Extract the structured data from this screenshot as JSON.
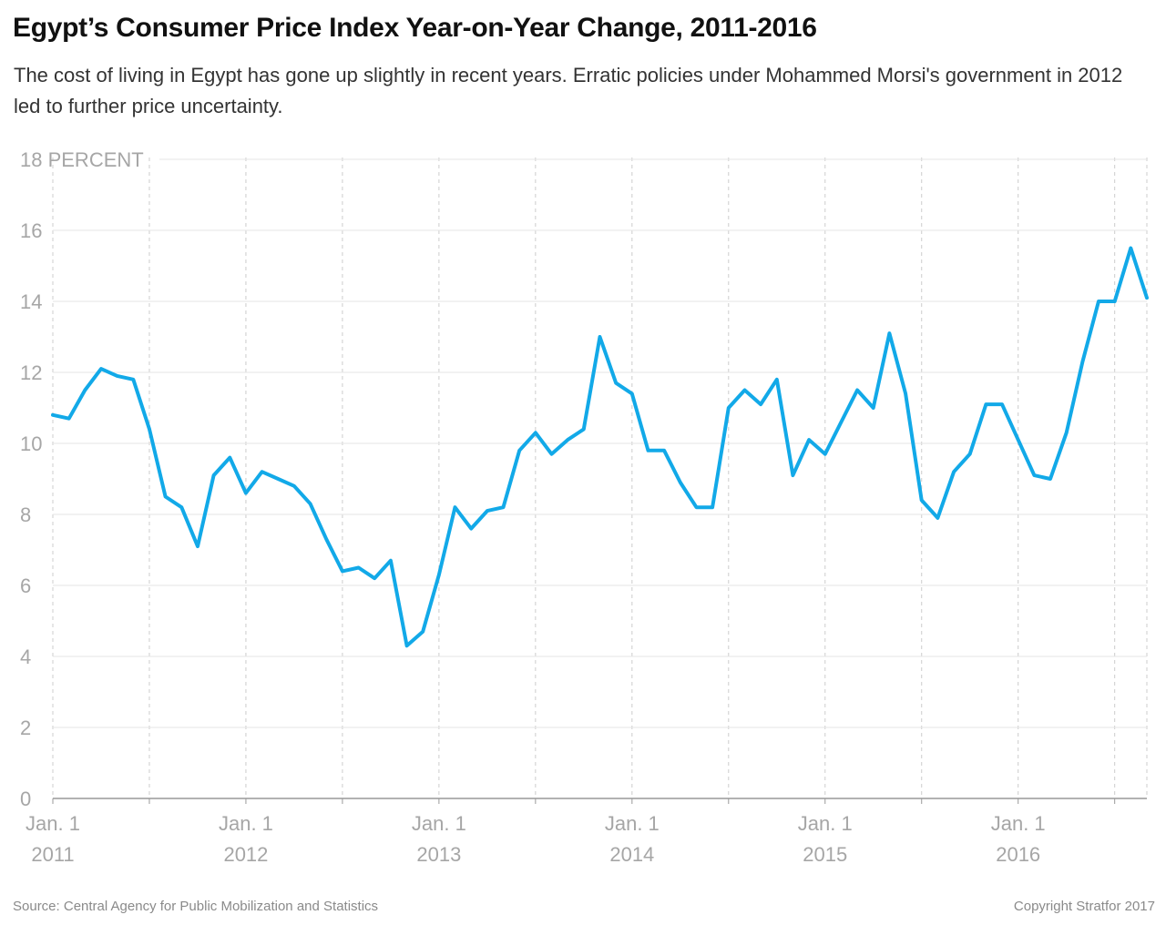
{
  "title": "Egypt’s Consumer Price Index Year-on-Year Change, 2011-2016",
  "subtitle": "The cost of living in Egypt has gone up slightly in recent years. Erratic policies under Mohammed Morsi's government in 2012 led to further price uncertainty.",
  "source": "Source: Central Agency for Public Mobilization and Statistics",
  "copyright": "Copyright Stratfor 2017",
  "colors": {
    "line": "#12a9e8",
    "grid": "#e6e6e6",
    "vgrid": "#cccccc",
    "axis": "#999999",
    "label": "#a6a6a6"
  },
  "chart_data": {
    "type": "line",
    "title": "Egypt’s Consumer Price Index Year-on-Year Change, 2011-2016",
    "xlabel": "",
    "ylabel": "PERCENT",
    "ylim": [
      0,
      18
    ],
    "y_ticks": [
      {
        "value": 0,
        "label": "0"
      },
      {
        "value": 2,
        "label": "2"
      },
      {
        "value": 4,
        "label": "4"
      },
      {
        "value": 6,
        "label": "6"
      },
      {
        "value": 8,
        "label": "8"
      },
      {
        "value": 10,
        "label": "10"
      },
      {
        "value": 12,
        "label": "12"
      },
      {
        "value": 14,
        "label": "14"
      },
      {
        "value": 16,
        "label": "16"
      },
      {
        "value": 18,
        "label": "18 PERCENT"
      }
    ],
    "x_ticks": [
      {
        "month_index": 0,
        "line1": "Jan. 1",
        "line2": "2011"
      },
      {
        "month_index": 12,
        "line1": "Jan. 1",
        "line2": "2012"
      },
      {
        "month_index": 24,
        "line1": "Jan. 1",
        "line2": "2013"
      },
      {
        "month_index": 36,
        "line1": "Jan. 1",
        "line2": "2014"
      },
      {
        "month_index": 48,
        "line1": "Jan. 1",
        "line2": "2015"
      },
      {
        "month_index": 60,
        "line1": "Jan. 1",
        "line2": "2016"
      }
    ],
    "x_start": "2011-01",
    "x_step": "1 month",
    "grid": true,
    "series": [
      {
        "values": [
          10.8,
          10.7,
          11.5,
          12.1,
          11.9,
          11.8,
          10.4,
          8.5,
          8.2,
          7.1,
          9.1,
          9.6,
          8.6,
          9.2,
          9.0,
          8.8,
          8.3,
          7.3,
          6.4,
          6.5,
          6.2,
          6.7,
          4.3,
          4.7,
          6.3,
          8.2,
          7.6,
          8.1,
          8.2,
          9.8,
          10.3,
          9.7,
          10.1,
          10.4,
          13.0,
          11.7,
          11.4,
          9.8,
          9.8,
          8.9,
          8.2,
          8.2,
          11.0,
          11.5,
          11.1,
          11.8,
          9.1,
          10.1,
          9.7,
          10.6,
          11.5,
          11.0,
          13.1,
          11.4,
          8.4,
          7.9,
          9.2,
          9.7,
          11.1,
          11.1,
          10.1,
          9.1,
          9.0,
          10.3,
          12.3,
          14.0,
          14.0,
          15.5,
          14.1
        ]
      }
    ]
  }
}
